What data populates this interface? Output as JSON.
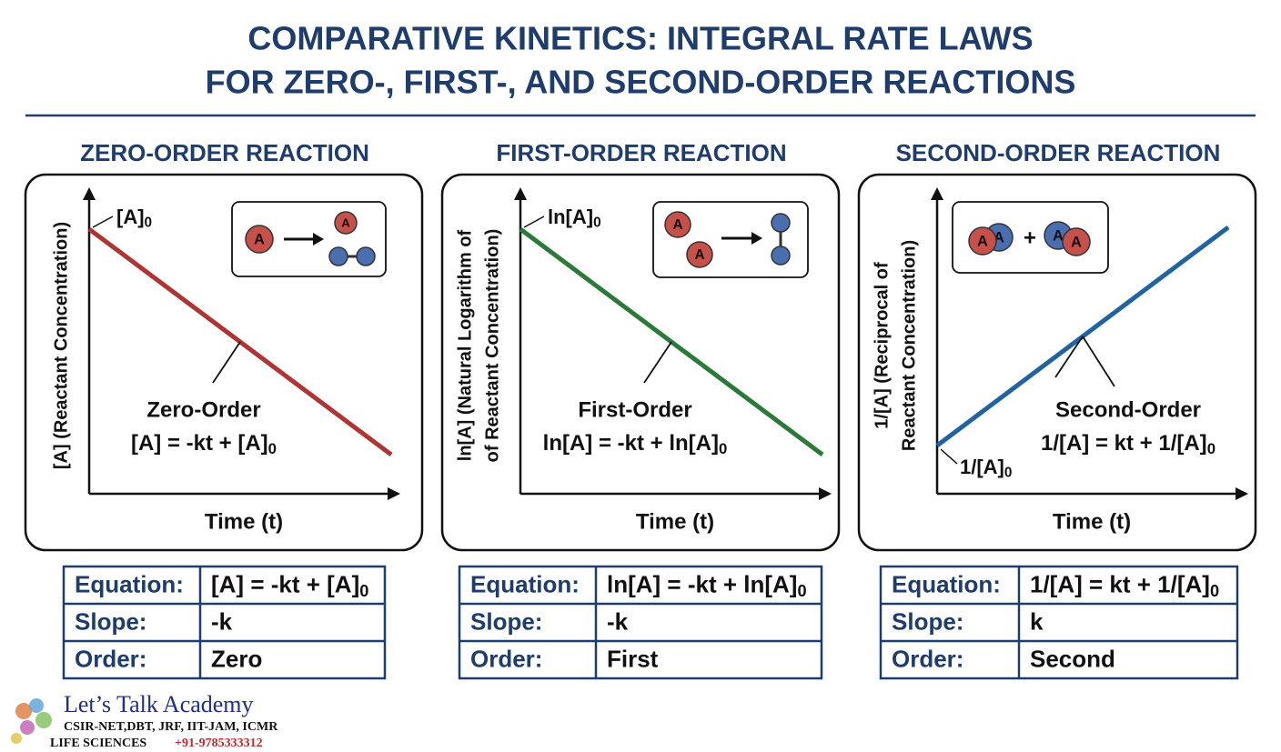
{
  "header": {
    "title_lines": [
      "COMPARATIVE KINETICS: INTEGRAL RATE LAWS",
      "FOR ZERO-, FIRST-, AND SECOND-ORDER REACTIONS"
    ]
  },
  "molecule_label": "A",
  "panels": [
    {
      "heading": "ZERO-ORDER REACTION",
      "color": "#b03434",
      "y_label": [
        "[A] (Reactant Concentration)"
      ],
      "x_label": "Time (t)",
      "intercept": {
        "text": "[A]",
        "sub": "0"
      },
      "curve_name": "Zero-Order",
      "equation": {
        "text": "[A] = -kt + [A]",
        "sub": "0"
      },
      "table": [
        [
          "Equation:",
          {
            "text": "[A] = -kt + [A]",
            "sub": "0"
          }
        ],
        [
          "Slope:",
          "-k"
        ],
        [
          "Order:",
          "Zero"
        ]
      ]
    },
    {
      "heading": "FIRST-ORDER REACTION",
      "color": "#2a7a3a",
      "y_label": [
        "ln[A] (Natural Logarithm of",
        "of Reactant Concentration)"
      ],
      "x_label": "Time (t)",
      "intercept": {
        "text": "ln[A]",
        "sub": "0"
      },
      "curve_name": "First-Order",
      "equation": {
        "text": "ln[A] = -kt + ln[A]",
        "sub": "0"
      },
      "table": [
        [
          "Equation:",
          {
            "text": "ln[A] = -kt + ln[A]",
            "sub": "0"
          }
        ],
        [
          "Slope:",
          "-k"
        ],
        [
          "Order:",
          "First"
        ]
      ]
    },
    {
      "heading": "SECOND-ORDER REACTION",
      "color": "#1f63a3",
      "y_label": [
        "1/[A] (Reciprocal of",
        "Reactant Concentration)"
      ],
      "x_label": "Time (t)",
      "intercept": {
        "text": "1/[A]",
        "sub": "0"
      },
      "curve_name": "Second-Order",
      "equation": {
        "text": "1/[A] = kt + 1/[A]",
        "sub": "0"
      },
      "table": [
        [
          "Equation:",
          {
            "text": "1/[A] = kt + 1/[A]",
            "sub": "0"
          }
        ],
        [
          "Slope:",
          "k"
        ],
        [
          "Order:",
          "Second"
        ]
      ]
    }
  ],
  "footer": {
    "name": "Let’s Talk Academy",
    "exams": "CSIR-NET,DBT, JRF, IIT-JAM, ICMR",
    "subject": "LIFE SCIENCES",
    "phone": "+91-9785333312"
  }
}
